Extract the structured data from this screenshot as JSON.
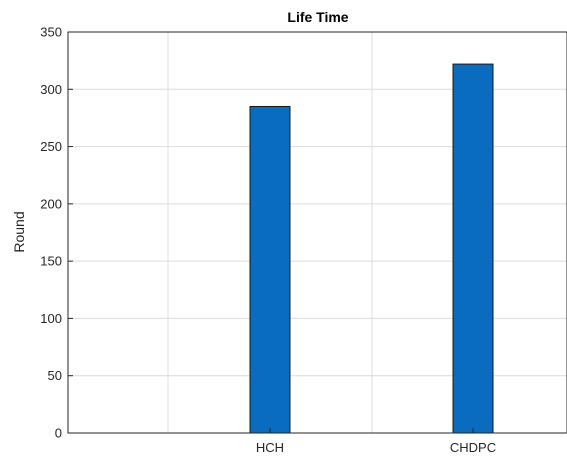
{
  "chart_data": {
    "type": "bar",
    "title": "Life Time",
    "xlabel": "",
    "ylabel": "Round",
    "categories": [
      "HCH",
      "CHDPC"
    ],
    "values": [
      285,
      322
    ],
    "ylim": [
      0,
      350
    ],
    "yticks": [
      0,
      50,
      100,
      150,
      200,
      250,
      300,
      350
    ],
    "bar_color": "#0a6cbf",
    "grid": true
  }
}
